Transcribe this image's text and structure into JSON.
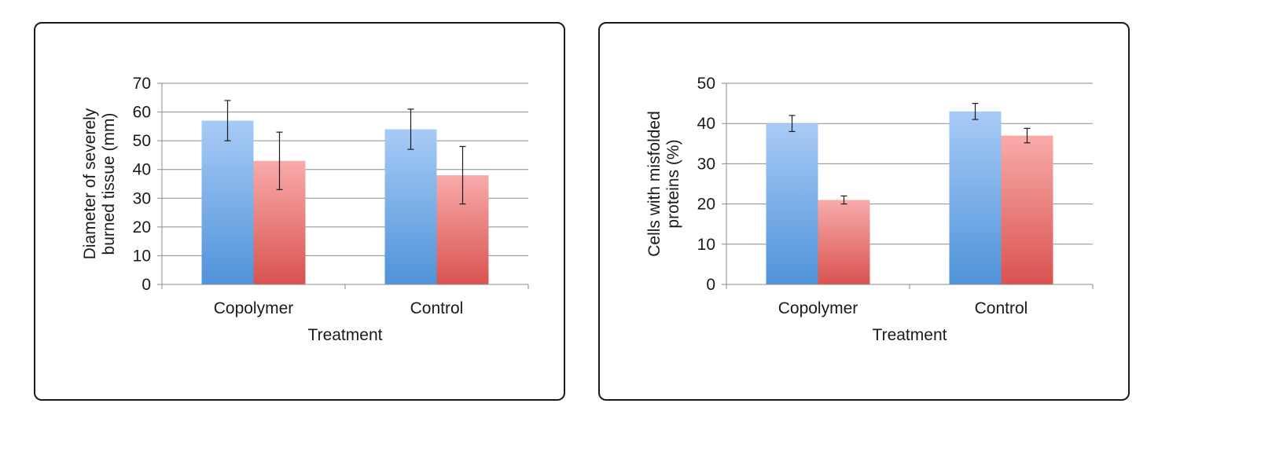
{
  "chart_data": [
    {
      "type": "bar",
      "categories": [
        "Copolymer",
        "Control"
      ],
      "series": [
        {
          "values": [
            57,
            54
          ],
          "error": [
            7,
            7
          ],
          "color": "#5b9bde"
        },
        {
          "values": [
            43,
            38
          ],
          "error": [
            10,
            10
          ],
          "color": "#dd5f5a"
        }
      ],
      "xlabel": "Treatment",
      "ylabel_lines": [
        "Diameter of severely",
        "burned tissue (mm)"
      ],
      "ylim": [
        0,
        70
      ],
      "yticks": [
        "0",
        "10",
        "20",
        "30",
        "40",
        "50",
        "60",
        "70"
      ],
      "grid": true,
      "legend": "none"
    },
    {
      "type": "bar",
      "categories": [
        "Copolymer",
        "Control"
      ],
      "series": [
        {
          "values": [
            40,
            43
          ],
          "error": [
            2,
            2
          ],
          "color": "#5b9bde"
        },
        {
          "values": [
            21,
            37
          ],
          "error": [
            1,
            1.8
          ],
          "color": "#dd5f5a"
        }
      ],
      "xlabel": "Treatment",
      "ylabel_lines": [
        "Cells with misfolded",
        "proteins (%)"
      ],
      "ylim": [
        0,
        50
      ],
      "yticks": [
        "0",
        "10",
        "20",
        "30",
        "40",
        "50"
      ],
      "grid": true,
      "legend": "none"
    }
  ]
}
